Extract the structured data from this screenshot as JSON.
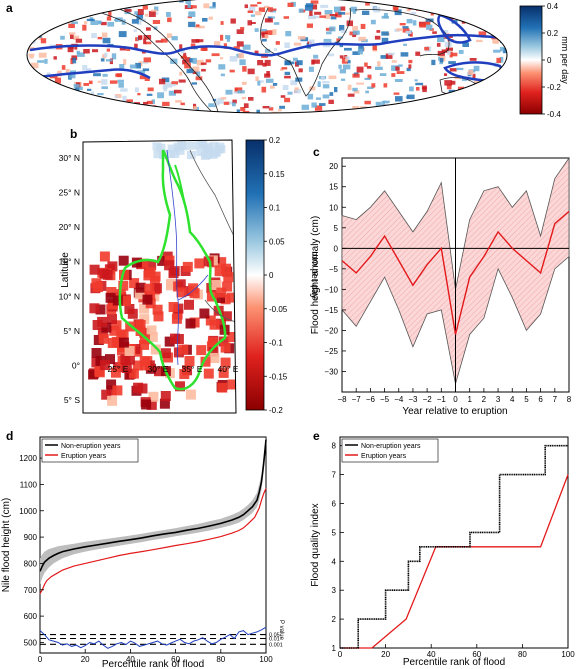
{
  "colorbar_scale": {
    "colors": [
      "#08306b",
      "#2171b5",
      "#6baed6",
      "#c6dbef",
      "#ffffff",
      "#fcbba1",
      "#ef3b2c",
      "#cb181d",
      "#99000d"
    ]
  },
  "chart_data": [
    {
      "panel": "a",
      "type": "heatmap",
      "colorbar": {
        "label": "mm per day",
        "ticks": [
          "0.4",
          "0.2",
          "0",
          "-0.2",
          "-0.4"
        ],
        "range": [
          -0.4,
          0.4
        ]
      }
    },
    {
      "panel": "b",
      "type": "heatmap",
      "ylabel": "Latitude",
      "lat_ticks": [
        "30° N",
        "25° N",
        "20° N",
        "15° N",
        "10° N",
        "5° N",
        "0°",
        "5° S"
      ],
      "lon_ticks": [
        "25° E",
        "30° E",
        "35° E",
        "40° E"
      ],
      "colorbar": {
        "label": "mm per day",
        "ticks": [
          "0.2",
          "0.15",
          "0.1",
          "0.05",
          "0",
          "-0.05",
          "-0.1",
          "-0.15",
          "-0.2"
        ],
        "range": [
          -0.2,
          0.2
        ]
      }
    },
    {
      "panel": "c",
      "type": "line",
      "xlabel": "Year relative to eruption",
      "ylabel": "Flood height anomaly (cm)",
      "xlim": [
        -8,
        8
      ],
      "ylim": [
        -35,
        22
      ],
      "x_ticks": [
        -8,
        -7,
        -6,
        -5,
        -4,
        -3,
        -2,
        -1,
        0,
        1,
        2,
        3,
        4,
        5,
        6,
        7,
        8
      ],
      "y_ticks": [
        20,
        15,
        10,
        5,
        0,
        -5,
        -10,
        -15,
        -20,
        -25,
        -30
      ],
      "x": [
        -8,
        -7,
        -6,
        -5,
        -4,
        -3,
        -2,
        -1,
        0,
        1,
        2,
        3,
        4,
        5,
        6,
        7,
        8
      ],
      "mean": [
        -3,
        -6,
        -2,
        3,
        -3,
        -9,
        -4,
        0,
        -21,
        -7,
        -2,
        4,
        0,
        -3,
        -6,
        6,
        9
      ],
      "upper": [
        8,
        7,
        10,
        14,
        9,
        4,
        9,
        16,
        -10,
        7,
        14,
        15,
        10,
        14,
        3,
        17,
        22
      ],
      "lower": [
        -15,
        -19,
        -13,
        -7,
        -15,
        -24,
        -16,
        -15,
        -33,
        -21,
        -17,
        -5,
        -12,
        -20,
        -16,
        -5,
        -2
      ]
    },
    {
      "panel": "d",
      "type": "line",
      "xlabel": "Percentile rank of flood",
      "ylabel": "Nile flood height (cm)",
      "xlim": [
        0,
        100
      ],
      "ylim": [
        460,
        1280
      ],
      "x_ticks": [
        0,
        20,
        40,
        60,
        80,
        100
      ],
      "y_ticks": [
        500,
        600,
        700,
        800,
        900,
        1000,
        1100,
        1200
      ],
      "pvalue_label": "P value",
      "pvalue_ticks": [
        "0.05",
        "0.01",
        "0.001"
      ],
      "series": [
        {
          "name": "Non-eruption years",
          "color": "#000000",
          "x": [
            0,
            1,
            2,
            4,
            6,
            8,
            10,
            15,
            20,
            25,
            30,
            35,
            40,
            45,
            50,
            55,
            60,
            65,
            70,
            75,
            80,
            85,
            88,
            90,
            92,
            94,
            96,
            97,
            98,
            99,
            100
          ],
          "values": [
            770,
            790,
            805,
            820,
            830,
            838,
            845,
            855,
            863,
            870,
            877,
            884,
            890,
            897,
            905,
            912,
            918,
            926,
            933,
            942,
            952,
            965,
            975,
            985,
            1000,
            1015,
            1040,
            1070,
            1110,
            1180,
            1270
          ],
          "band_upper": [
            820,
            835,
            845,
            855,
            860,
            865,
            868,
            875,
            882,
            888,
            894,
            900,
            906,
            913,
            920,
            927,
            934,
            942,
            950,
            960,
            970,
            985,
            996,
            1008,
            1022,
            1040,
            1068,
            1100,
            1140,
            1210,
            1280
          ],
          "band_lower": [
            720,
            745,
            765,
            785,
            800,
            810,
            820,
            835,
            845,
            853,
            860,
            867,
            874,
            881,
            889,
            896,
            903,
            910,
            917,
            925,
            935,
            946,
            955,
            965,
            978,
            992,
            1014,
            1040,
            1080,
            1150,
            1250
          ]
        },
        {
          "name": "Eruption years",
          "color": "#e31a1c",
          "x": [
            0,
            1,
            2,
            3,
            5,
            8,
            10,
            15,
            20,
            25,
            30,
            35,
            40,
            45,
            50,
            55,
            60,
            65,
            70,
            75,
            80,
            85,
            88,
            90,
            92,
            95,
            97,
            98,
            99,
            100
          ],
          "values": [
            685,
            700,
            720,
            735,
            750,
            765,
            775,
            790,
            800,
            810,
            820,
            830,
            838,
            845,
            852,
            860,
            868,
            875,
            883,
            892,
            902,
            915,
            925,
            935,
            950,
            975,
            1010,
            1040,
            1065,
            1085
          ]
        },
        {
          "name": "P value",
          "color": "#1f3fbf",
          "x": [
            0,
            2,
            4,
            6,
            8,
            10,
            12,
            14,
            16,
            18,
            20,
            22,
            24,
            26,
            28,
            30,
            32,
            34,
            36,
            38,
            40,
            42,
            44,
            46,
            48,
            50,
            52,
            54,
            56,
            58,
            60,
            62,
            64,
            66,
            68,
            70,
            72,
            74,
            76,
            78,
            80,
            82,
            84,
            86,
            88,
            90,
            92,
            94,
            96,
            98,
            100
          ],
          "values": [
            545,
            530,
            510,
            505,
            500,
            490,
            495,
            485,
            490,
            480,
            488,
            500,
            495,
            505,
            490,
            478,
            485,
            495,
            500,
            492,
            505,
            498,
            485,
            490,
            495,
            500,
            505,
            495,
            490,
            498,
            505,
            512,
            500,
            495,
            505,
            510,
            518,
            505,
            495,
            500,
            512,
            520,
            530,
            515,
            540,
            545,
            530,
            535,
            540,
            548,
            558
          ]
        }
      ],
      "pvalue_line_levels": [
        530,
        515,
        493
      ]
    },
    {
      "panel": "e",
      "type": "line",
      "xlabel": "Percentile rank of flood",
      "ylabel": "Flood quality index",
      "xlim": [
        0,
        100
      ],
      "ylim": [
        1,
        8.3
      ],
      "x_ticks": [
        0,
        20,
        40,
        60,
        80,
        100
      ],
      "y_ticks": [
        1,
        2,
        3,
        4,
        5,
        6,
        7,
        8
      ],
      "series": [
        {
          "name": "Non-eruption years",
          "color": "#000000",
          "x": [
            0,
            8,
            8,
            20,
            20,
            30,
            30,
            35,
            35,
            57,
            57,
            70,
            70,
            90,
            90,
            100
          ],
          "values": [
            1,
            1,
            2,
            2,
            3,
            3,
            4,
            4,
            4.5,
            4.5,
            5,
            5,
            7,
            7,
            8,
            8
          ]
        },
        {
          "name": "Eruption years",
          "color": "#e31a1c",
          "x": [
            0,
            14,
            29,
            42,
            88,
            100
          ],
          "values": [
            1,
            1,
            2,
            4.5,
            4.5,
            7
          ]
        }
      ]
    }
  ]
}
